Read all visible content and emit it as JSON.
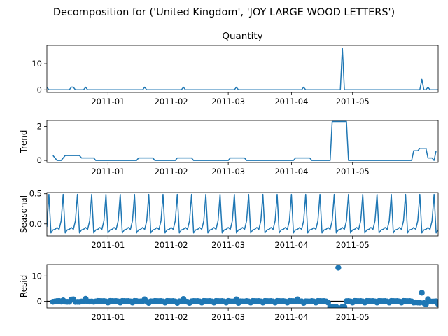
{
  "figure": {
    "suptitle": "Decomposition for ('United Kingdom', 'JOY LARGE WOOD LETTERS')"
  },
  "chart_data": [
    {
      "type": "line",
      "title": "Quantity",
      "ylabel": "",
      "x_ticks": [
        "2011-01",
        "2011-02",
        "2011-03",
        "2011-04",
        "2011-05"
      ],
      "xlim": [
        0,
        192
      ],
      "ylim": [
        -1,
        17
      ],
      "y_ticks": [
        0,
        10
      ],
      "color": "#1f77b4",
      "series": [
        {
          "values": [
            1.0,
            0.0,
            0.0,
            0.0,
            0.0,
            0.0,
            0.0,
            0.0,
            0.0,
            0.0,
            0.0,
            0.0,
            1.0,
            1.0,
            0.0,
            0.0,
            0.0,
            0.0,
            0.0,
            1.0,
            0.0,
            0.0,
            0.0,
            0.0,
            0.0,
            0.0,
            0.0,
            0.0,
            0.0,
            0.0,
            0.0,
            0.0,
            0.0,
            0.0,
            0.0,
            0.0,
            0.0,
            0.0,
            0.0,
            0.0,
            0.0,
            0.0,
            0.0,
            0.0,
            0.0,
            0.0,
            0.0,
            0.0,
            1.0,
            0.0,
            0.0,
            0.0,
            0.0,
            0.0,
            0.0,
            0.0,
            0.0,
            0.0,
            0.0,
            0.0,
            0.0,
            0.0,
            0.0,
            0.0,
            0.0,
            0.0,
            0.0,
            1.0,
            0.0,
            0.0,
            0.0,
            0.0,
            0.0,
            0.0,
            0.0,
            0.0,
            0.0,
            0.0,
            0.0,
            0.0,
            0.0,
            0.0,
            0.0,
            0.0,
            0.0,
            0.0,
            0.0,
            0.0,
            0.0,
            0.0,
            0.0,
            0.0,
            0.0,
            1.0,
            0.0,
            0.0,
            0.0,
            0.0,
            0.0,
            0.0,
            0.0,
            0.0,
            0.0,
            0.0,
            0.0,
            0.0,
            0.0,
            0.0,
            0.0,
            0.0,
            0.0,
            0.0,
            0.0,
            0.0,
            0.0,
            0.0,
            0.0,
            0.0,
            0.0,
            0.0,
            0.0,
            0.0,
            0.0,
            0.0,
            0.0,
            0.0,
            1.0,
            0.0,
            0.0,
            0.0,
            0.0,
            0.0,
            0.0,
            0.0,
            0.0,
            0.0,
            0.0,
            0.0,
            0.0,
            0.0,
            0.0,
            0.0,
            0.0,
            0.0,
            0.0,
            16.0,
            0.0,
            0.0,
            0.0,
            0.0,
            0.0,
            0.0,
            0.0,
            0.0,
            0.0,
            0.0,
            0.0,
            0.0,
            0.0,
            0.0,
            0.0,
            0.0,
            0.0,
            0.0,
            0.0,
            0.0,
            0.0,
            0.0,
            0.0,
            0.0,
            0.0,
            0.0,
            0.0,
            0.0,
            0.0,
            0.0,
            0.0,
            0.0,
            0.0,
            0.0,
            0.0,
            0.0,
            0.0,
            0.0,
            4.0,
            0.0,
            0.0,
            1.0,
            0.0,
            0.0,
            0.0,
            0.0,
            0.0,
            0.0,
            0.0,
            4.0
          ]
        }
      ]
    },
    {
      "type": "line",
      "title": "",
      "ylabel": "Trend",
      "x_ticks": [
        "2011-01",
        "2011-02",
        "2011-03",
        "2011-04",
        "2011-05"
      ],
      "xlim": [
        0,
        192
      ],
      "ylim": [
        -0.12,
        2.35
      ],
      "y_ticks": [
        0,
        2
      ],
      "color": "#1f77b4",
      "series": [
        {
          "values": [
            null,
            null,
            null,
            0.286,
            0.143,
            0.0,
            0.0,
            0.0,
            0.143,
            0.286,
            0.286,
            0.286,
            0.286,
            0.286,
            0.286,
            0.286,
            0.286,
            0.143,
            0.143,
            0.143,
            0.143,
            0.143,
            0.143,
            0.143,
            0.0,
            0.0,
            0.0,
            0.0,
            0.0,
            0.0,
            0.0,
            0.0,
            0.0,
            0.0,
            0.0,
            0.0,
            0.0,
            0.0,
            0.0,
            0.0,
            0.0,
            0.0,
            0.0,
            0.0,
            0.0,
            0.143,
            0.143,
            0.143,
            0.143,
            0.143,
            0.143,
            0.143,
            0.143,
            0.0,
            0.0,
            0.0,
            0.0,
            0.0,
            0.0,
            0.0,
            0.0,
            0.0,
            0.0,
            0.0,
            0.143,
            0.143,
            0.143,
            0.143,
            0.143,
            0.143,
            0.143,
            0.143,
            0.0,
            0.0,
            0.0,
            0.0,
            0.0,
            0.0,
            0.0,
            0.0,
            0.0,
            0.0,
            0.0,
            0.0,
            0.0,
            0.0,
            0.0,
            0.0,
            0.0,
            0.0,
            0.143,
            0.143,
            0.143,
            0.143,
            0.143,
            0.143,
            0.143,
            0.143,
            0.0,
            0.0,
            0.0,
            0.0,
            0.0,
            0.0,
            0.0,
            0.0,
            0.0,
            0.0,
            0.0,
            0.0,
            0.0,
            0.0,
            0.0,
            0.0,
            0.0,
            0.0,
            0.0,
            0.0,
            0.0,
            0.0,
            0.0,
            0.0,
            0.143,
            0.143,
            0.143,
            0.143,
            0.143,
            0.143,
            0.143,
            0.143,
            0.0,
            0.0,
            0.0,
            0.0,
            0.0,
            0.0,
            0.0,
            0.0,
            0.0,
            0.0,
            2.286,
            2.286,
            2.286,
            2.286,
            2.286,
            2.286,
            2.286,
            2.286,
            0.0,
            0.0,
            0.0,
            0.0,
            0.0,
            0.0,
            0.0,
            0.0,
            0.0,
            0.0,
            0.0,
            0.0,
            0.0,
            0.0,
            0.0,
            0.0,
            0.0,
            0.0,
            0.0,
            0.0,
            0.0,
            0.0,
            0.0,
            0.0,
            0.0,
            0.0,
            0.0,
            0.0,
            0.0,
            0.0,
            0.0,
            0.0,
            0.571,
            0.571,
            0.571,
            0.714,
            0.714,
            0.714,
            0.714,
            0.143,
            0.143,
            0.143,
            0.0,
            0.571,
            null,
            null,
            null
          ]
        }
      ]
    },
    {
      "type": "line",
      "title": "",
      "ylabel": "Seasonal",
      "x_ticks": [
        "2011-01",
        "2011-02",
        "2011-03",
        "2011-04",
        "2011-05"
      ],
      "xlim": [
        0,
        192
      ],
      "ylim": [
        -0.2,
        0.52
      ],
      "y_ticks": [
        "0.5",
        "0.0"
      ],
      "color": "#1f77b4",
      "series": [
        {
          "values": [
            -0.05,
            0.49,
            -0.15,
            -0.1,
            -0.09,
            -0.06,
            -0.09,
            0.05,
            0.49,
            -0.15,
            -0.1,
            -0.09,
            -0.06,
            -0.09,
            0.05,
            0.49,
            -0.15,
            -0.1,
            -0.09,
            -0.06,
            -0.09,
            0.05,
            0.49,
            -0.15,
            -0.1,
            -0.09,
            -0.06,
            -0.09,
            0.05,
            0.49,
            -0.15,
            -0.1,
            -0.09,
            -0.06,
            -0.09,
            0.05,
            0.49,
            -0.15,
            -0.1,
            -0.09,
            -0.06,
            -0.09,
            0.05,
            0.49,
            -0.15,
            -0.1,
            -0.09,
            -0.06,
            -0.09,
            0.05,
            0.49,
            -0.15,
            -0.1,
            -0.09,
            -0.06,
            -0.09,
            0.05,
            0.49,
            -0.15,
            -0.1,
            -0.09,
            -0.06,
            -0.09,
            0.05,
            0.49,
            -0.15,
            -0.1,
            -0.09,
            -0.06,
            -0.09,
            0.05,
            0.49,
            -0.15,
            -0.1,
            -0.09,
            -0.06,
            -0.09,
            0.05,
            0.49,
            -0.15,
            -0.1,
            -0.09,
            -0.06,
            -0.09,
            0.05,
            0.49,
            -0.15,
            -0.1,
            -0.09,
            -0.06,
            -0.09,
            0.05,
            0.49,
            -0.15,
            -0.1,
            -0.09,
            -0.06,
            -0.09,
            0.05,
            0.49,
            -0.15,
            -0.1,
            -0.09,
            -0.06,
            -0.09,
            0.05,
            0.49,
            -0.15,
            -0.1,
            -0.09,
            -0.06,
            -0.09,
            0.05,
            0.49,
            -0.15,
            -0.1,
            -0.09,
            -0.06,
            -0.09,
            0.05,
            0.49,
            -0.15,
            -0.1,
            -0.09,
            -0.06,
            -0.09,
            0.05,
            0.49,
            -0.15,
            -0.1,
            -0.09,
            -0.06,
            -0.09,
            0.05,
            0.49,
            -0.15,
            -0.1,
            -0.09,
            -0.06,
            -0.09,
            0.05,
            0.49,
            -0.15,
            -0.1,
            -0.09,
            -0.06,
            -0.09,
            0.05,
            0.49,
            -0.15,
            -0.1,
            -0.09,
            -0.06,
            -0.09,
            0.05,
            0.49,
            -0.15,
            -0.1,
            -0.09,
            -0.06,
            -0.09,
            0.05,
            0.49,
            -0.15,
            -0.1,
            -0.09,
            -0.06,
            -0.09,
            0.05,
            0.49,
            -0.15,
            -0.1,
            -0.09,
            -0.06,
            -0.09,
            0.05,
            0.49,
            -0.15,
            -0.1,
            -0.09,
            -0.06,
            -0.09,
            0.05,
            0.49,
            -0.15,
            -0.1,
            -0.09,
            -0.06,
            -0.09,
            0.05,
            0.49,
            -0.15,
            -0.1,
            -0.09,
            -0.06,
            -0.09,
            0.05
          ]
        }
      ]
    },
    {
      "type": "scatter",
      "title": "",
      "ylabel": "Resid",
      "x_ticks": [
        "2011-01",
        "2011-02",
        "2011-03",
        "2011-04",
        "2011-05"
      ],
      "xlim": [
        0,
        192
      ],
      "ylim": [
        -2.6,
        14.5
      ],
      "y_ticks": [
        0,
        10
      ],
      "baseline": 0,
      "color": "#1f77b4",
      "series": [
        {
          "values": [
            null,
            null,
            null,
            -0.19,
            -0.04,
            0.09,
            0.15,
            -0.14,
            0.37,
            -0.14,
            -0.19,
            -0.2,
            0.71,
            0.8,
            -0.24,
            -0.2,
            -0.22,
            -0.08,
            -0.05,
            1.01,
            -0.05,
            -0.09,
            -0.06,
            -0.2,
            -0.03,
            0.15,
            0.1,
            0.06,
            0.09,
            -0.05,
            -0.49,
            0.15,
            0.1,
            0.06,
            0.09,
            -0.05,
            -0.49,
            0.15,
            0.1,
            0.06,
            0.09,
            -0.05,
            -0.49,
            0.15,
            0.1,
            -0.08,
            -0.05,
            0.0,
            0.81,
            -0.0,
            -0.63,
            0.0,
            -0.05,
            0.15,
            0.1,
            0.06,
            0.09,
            -0.05,
            -0.49,
            0.15,
            0.1,
            0.06,
            0.09,
            -0.05,
            -0.63,
            0.0,
            -0.05,
            0.92,
            -0.05,
            -0.19,
            -0.63,
            0.0,
            0.1,
            0.06,
            0.09,
            -0.05,
            -0.49,
            0.15,
            0.1,
            0.06,
            0.09,
            -0.05,
            -0.49,
            0.15,
            0.1,
            0.06,
            0.09,
            -0.05,
            -0.49,
            0.15,
            -0.05,
            -0.08,
            -0.05,
            0.81,
            -0.63,
            0.0,
            -0.05,
            -0.08,
            0.09,
            -0.05,
            -0.49,
            0.15,
            0.1,
            0.06,
            0.09,
            -0.05,
            -0.49,
            0.15,
            0.1,
            0.06,
            0.09,
            -0.05,
            -0.49,
            0.15,
            0.1,
            0.06,
            0.09,
            -0.05,
            -0.49,
            0.15,
            0.1,
            0.06,
            -0.05,
            0.81,
            -0.05,
            0.0,
            -0.63,
            0.0,
            -0.05,
            -0.08,
            0.09,
            -0.05,
            -0.49,
            0.15,
            0.1,
            0.06,
            0.09,
            -0.05,
            -0.49,
            -2.14,
            -2.19,
            -2.22,
            -2.19,
            13.28,
            -2.77,
            -2.14,
            -2.19,
            0.06,
            0.09,
            -0.05,
            -0.49,
            0.15,
            0.1,
            0.06,
            0.09,
            -0.05,
            -0.49,
            0.15,
            0.1,
            0.06,
            0.09,
            -0.05,
            -0.49,
            0.15,
            0.1,
            0.06,
            0.09,
            -0.05,
            -0.49,
            0.15,
            0.1,
            0.06,
            0.09,
            -0.05,
            -0.49,
            0.15,
            0.1,
            0.06,
            0.09,
            -0.05,
            -0.49,
            -0.42,
            -0.47,
            -0.51,
            3.38,
            -0.66,
            -1.2,
            0.86,
            -0.04,
            -0.09,
            -0.06,
            0.0,
            -1.06,
            null,
            null,
            null
          ]
        }
      ]
    }
  ]
}
